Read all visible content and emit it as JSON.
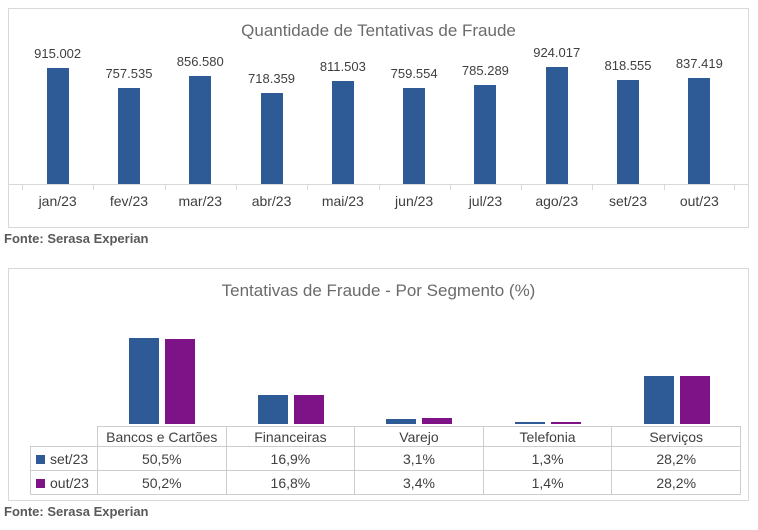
{
  "style": {
    "series_blue": "#2e5b96",
    "series_purple": "#7d1386",
    "panel_border": "#d9d9d9",
    "text_gray": "#3f3f3f",
    "title_gray": "#6b6b6b"
  },
  "chart_data": [
    {
      "type": "bar",
      "title": "Quantidade de Tentativas de Fraude",
      "categories": [
        "jan/23",
        "fev/23",
        "mar/23",
        "abr/23",
        "mai/23",
        "jun/23",
        "jul/23",
        "ago/23",
        "set/23",
        "out/23"
      ],
      "values": [
        915002,
        757535,
        856580,
        718359,
        811503,
        759554,
        785289,
        924017,
        818555,
        837419
      ],
      "value_labels": [
        "915.002",
        "757.535",
        "856.580",
        "718.359",
        "811.503",
        "759.554",
        "785.289",
        "924.017",
        "818.555",
        "837.419"
      ],
      "bar_color": "#2e5b96",
      "xlabel": "",
      "ylabel": "",
      "ylim": [
        0,
        950000
      ],
      "grid": false,
      "legend_position": "none",
      "source": "Fonte: Serasa Experian"
    },
    {
      "type": "bar",
      "title": "Tentativas de Fraude - Por Segmento (%)",
      "categories": [
        "Bancos e Cartões",
        "Financeiras",
        "Varejo",
        "Telefonia",
        "Serviços"
      ],
      "series": [
        {
          "name": "set/23",
          "color": "#2e5b96",
          "values": [
            50.5,
            16.9,
            3.1,
            1.3,
            28.2
          ],
          "value_labels": [
            "50,5%",
            "16,9%",
            "3,1%",
            "1,3%",
            "28,2%"
          ]
        },
        {
          "name": "out/23",
          "color": "#7d1386",
          "values": [
            50.2,
            16.8,
            3.4,
            1.4,
            28.2
          ],
          "value_labels": [
            "50,2%",
            "16,8%",
            "3,4%",
            "1,4%",
            "28,2%"
          ]
        }
      ],
      "xlabel": "",
      "ylabel": "",
      "ylim": [
        0,
        55
      ],
      "grid": false,
      "legend_position": "data-table",
      "source": "Fonte: Serasa Experian"
    }
  ]
}
